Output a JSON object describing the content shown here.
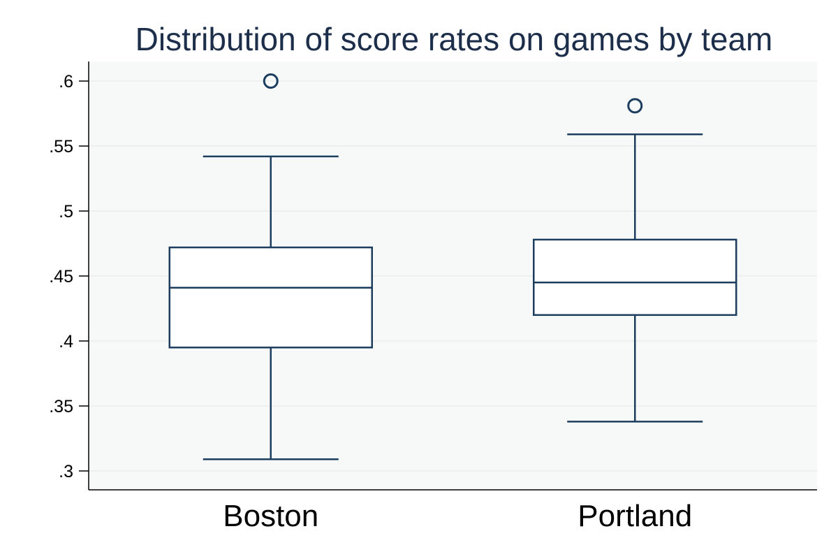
{
  "chart_data": {
    "type": "box",
    "title": "Distribution of score rates on games by team",
    "xlabel": "",
    "ylabel": "",
    "ylim": [
      0.285,
      0.615
    ],
    "y_ticks": [
      {
        "value": 0.3,
        "label": ".3"
      },
      {
        "value": 0.35,
        "label": ".35"
      },
      {
        "value": 0.4,
        "label": ".4"
      },
      {
        "value": 0.45,
        "label": ".45"
      },
      {
        "value": 0.5,
        "label": ".5"
      },
      {
        "value": 0.55,
        "label": ".55"
      },
      {
        "value": 0.6,
        "label": ".6"
      }
    ],
    "grid": true,
    "categories": [
      "Boston",
      "Portland"
    ],
    "boxes": [
      {
        "category": "Boston",
        "whisker_low": 0.309,
        "q1": 0.395,
        "median": 0.441,
        "q3": 0.472,
        "whisker_high": 0.542,
        "outliers": [
          0.6
        ]
      },
      {
        "category": "Portland",
        "whisker_low": 0.338,
        "q1": 0.42,
        "median": 0.445,
        "q3": 0.478,
        "whisker_high": 0.559,
        "outliers": [
          0.581
        ]
      }
    ],
    "colors": {
      "box_line": "#1c3d5e",
      "plot_bg": "#f7f9f9",
      "grid": "#e8eeee",
      "title": "#1c2e4a"
    }
  }
}
